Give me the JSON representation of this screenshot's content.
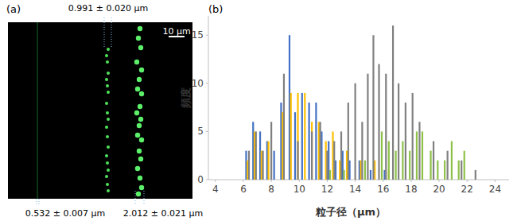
{
  "image_panel": {
    "label": "(a)",
    "scale_bar": "10 μm",
    "annotations": [
      "0.991 ± 0.020 μm",
      "0.532 ± 0.007 μm",
      "2.012 ± 0.021 μm"
    ]
  },
  "chart_data": {
    "type": "bar",
    "panel_label": "(b)",
    "x_label": "粒子径（μm）",
    "y_label": "頻度",
    "xlim": [
      3.5,
      25
    ],
    "ylim": [
      0,
      17
    ],
    "xticks": [
      4,
      6,
      8,
      10,
      12,
      14,
      16,
      18,
      20,
      22,
      24
    ],
    "yticks": [
      0,
      5,
      10,
      15
    ],
    "grid": false,
    "series": [
      {
        "color": "#4472c4",
        "x": [
          6.2,
          6.7,
          7.2,
          7.7,
          8.2,
          8.7,
          9.3,
          9.7,
          10.2,
          10.7,
          11.2,
          11.6,
          12.1,
          12.6,
          13.1,
          13.6,
          14.3,
          15.1,
          16.1
        ],
        "values": [
          3,
          6,
          5,
          4,
          3,
          8,
          15,
          7,
          9,
          8,
          8,
          5,
          4,
          2,
          3,
          2,
          2,
          1,
          1
        ]
      },
      {
        "color": "#ffc000",
        "x": [
          6.3,
          6.8,
          7.3,
          7.8,
          8.8,
          9.4,
          9.9,
          10.4,
          10.9,
          11.4,
          11.9,
          12.4,
          12.9,
          13.4,
          14.4,
          15.4,
          16.4
        ],
        "values": [
          2,
          5,
          3,
          4,
          7,
          9,
          9,
          9,
          6,
          6,
          4,
          5,
          2,
          3,
          2,
          2,
          1
        ]
      },
      {
        "color": "#808080",
        "x": [
          6.4,
          6.9,
          7.4,
          8.0,
          8.9,
          9.9,
          10.9,
          11.5,
          12.0,
          12.5,
          13.0,
          13.5,
          14.0,
          14.5,
          14.9,
          15.3,
          15.7,
          16.2,
          16.7,
          17.1,
          17.6,
          18.1,
          18.6,
          19.6,
          20.6,
          21.6,
          22.6
        ],
        "values": [
          3,
          5,
          3,
          6,
          11,
          4,
          5,
          6,
          3,
          4,
          5,
          8,
          10,
          6,
          11,
          15,
          12,
          11,
          16,
          10,
          8,
          9,
          6,
          4,
          3,
          2,
          1
        ]
      },
      {
        "color": "#8fc14a",
        "x": [
          12.2,
          13.2,
          14.7,
          15.9,
          16.4,
          16.9,
          17.4,
          17.9,
          18.4,
          18.8,
          19.4,
          19.9,
          20.4,
          20.9,
          21.4,
          21.8
        ],
        "values": [
          1,
          1,
          2,
          5,
          4,
          3,
          4,
          3,
          5,
          5,
          3,
          2,
          2,
          4,
          2,
          3
        ]
      }
    ]
  }
}
